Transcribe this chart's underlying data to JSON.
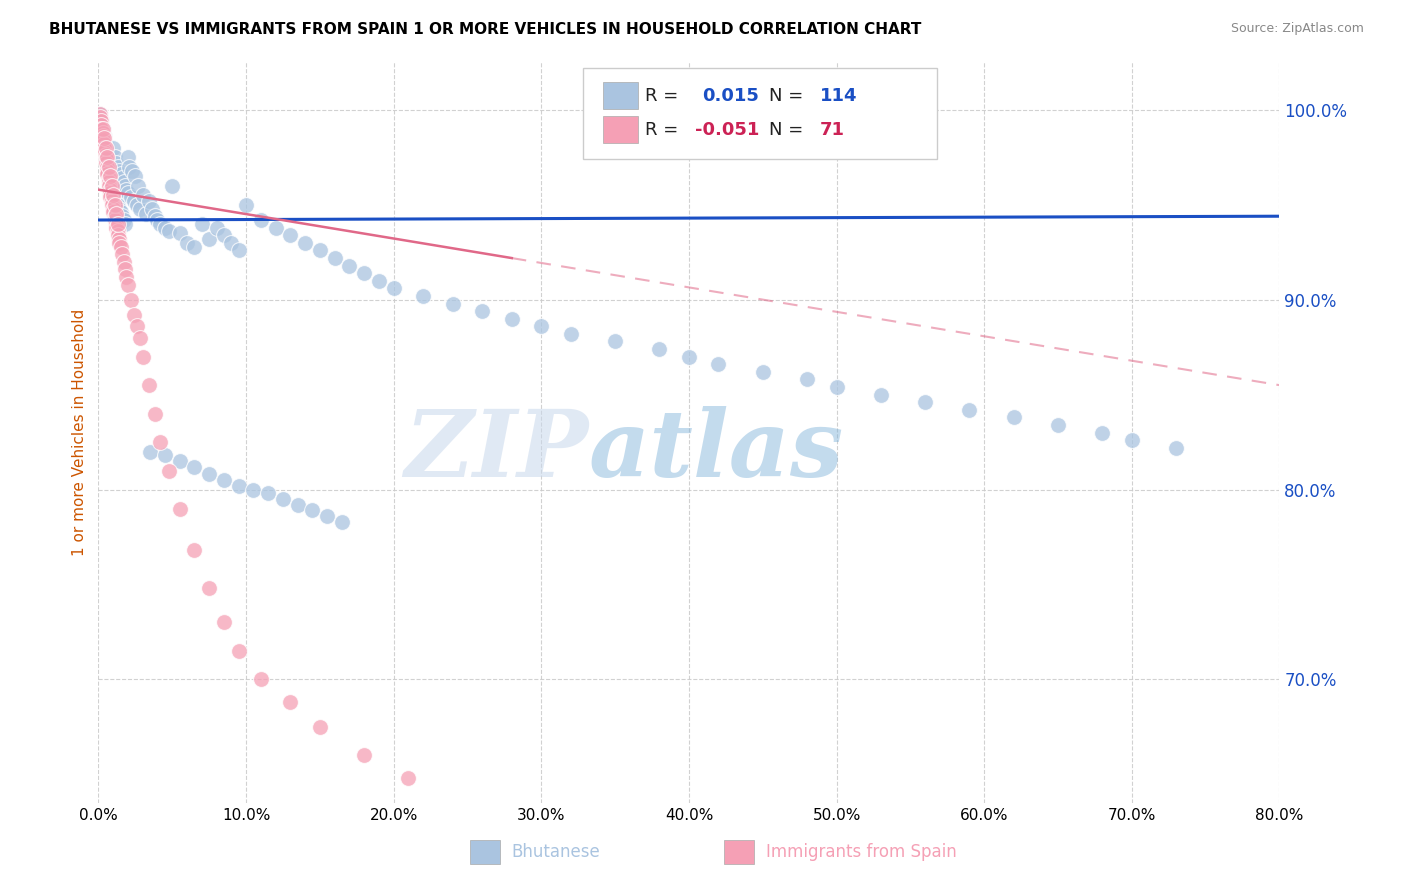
{
  "title": "BHUTANESE VS IMMIGRANTS FROM SPAIN 1 OR MORE VEHICLES IN HOUSEHOLD CORRELATION CHART",
  "source": "Source: ZipAtlas.com",
  "ylabel": "1 or more Vehicles in Household",
  "xlim": [
    0.0,
    0.8
  ],
  "ylim": [
    0.635,
    1.025
  ],
  "yticks": [
    0.7,
    0.8,
    0.9,
    1.0
  ],
  "xticks": [
    0.0,
    0.1,
    0.2,
    0.3,
    0.4,
    0.5,
    0.6,
    0.7,
    0.8
  ],
  "R_blue": 0.015,
  "N_blue": 114,
  "R_pink": -0.051,
  "N_pink": 71,
  "blue_color": "#aac4e0",
  "pink_color": "#f5a0b5",
  "blue_line_color": "#1a4fc4",
  "pink_line_color": "#e06888",
  "watermark_zip": "ZIP",
  "watermark_atlas": "atlas",
  "blue_scatter_x": [
    0.001,
    0.002,
    0.002,
    0.003,
    0.003,
    0.004,
    0.004,
    0.005,
    0.005,
    0.006,
    0.006,
    0.007,
    0.007,
    0.007,
    0.008,
    0.008,
    0.008,
    0.009,
    0.009,
    0.009,
    0.01,
    0.01,
    0.011,
    0.011,
    0.012,
    0.012,
    0.013,
    0.013,
    0.014,
    0.014,
    0.015,
    0.015,
    0.016,
    0.016,
    0.017,
    0.017,
    0.018,
    0.018,
    0.019,
    0.02,
    0.02,
    0.021,
    0.022,
    0.023,
    0.024,
    0.025,
    0.026,
    0.027,
    0.028,
    0.03,
    0.032,
    0.034,
    0.036,
    0.038,
    0.04,
    0.042,
    0.045,
    0.048,
    0.05,
    0.055,
    0.06,
    0.065,
    0.07,
    0.075,
    0.08,
    0.085,
    0.09,
    0.095,
    0.1,
    0.11,
    0.12,
    0.13,
    0.14,
    0.15,
    0.16,
    0.17,
    0.18,
    0.19,
    0.2,
    0.22,
    0.24,
    0.26,
    0.28,
    0.3,
    0.32,
    0.35,
    0.38,
    0.4,
    0.42,
    0.45,
    0.48,
    0.5,
    0.53,
    0.56,
    0.59,
    0.62,
    0.65,
    0.68,
    0.7,
    0.73,
    0.035,
    0.045,
    0.055,
    0.065,
    0.075,
    0.085,
    0.095,
    0.105,
    0.115,
    0.125,
    0.135,
    0.145,
    0.155,
    0.165
  ],
  "blue_scatter_y": [
    0.998,
    0.995,
    0.993,
    0.99,
    0.988,
    0.987,
    0.984,
    0.982,
    0.98,
    0.978,
    0.976,
    0.975,
    0.972,
    0.97,
    0.968,
    0.966,
    0.964,
    0.962,
    0.96,
    0.958,
    0.98,
    0.956,
    0.975,
    0.954,
    0.972,
    0.952,
    0.97,
    0.95,
    0.968,
    0.948,
    0.966,
    0.946,
    0.964,
    0.944,
    0.962,
    0.942,
    0.96,
    0.94,
    0.958,
    0.975,
    0.956,
    0.97,
    0.954,
    0.968,
    0.952,
    0.965,
    0.95,
    0.96,
    0.948,
    0.955,
    0.945,
    0.952,
    0.948,
    0.944,
    0.942,
    0.94,
    0.938,
    0.936,
    0.96,
    0.935,
    0.93,
    0.928,
    0.94,
    0.932,
    0.938,
    0.934,
    0.93,
    0.926,
    0.95,
    0.942,
    0.938,
    0.934,
    0.93,
    0.926,
    0.922,
    0.918,
    0.914,
    0.91,
    0.906,
    0.902,
    0.898,
    0.894,
    0.89,
    0.886,
    0.882,
    0.878,
    0.874,
    0.87,
    0.866,
    0.862,
    0.858,
    0.854,
    0.85,
    0.846,
    0.842,
    0.838,
    0.834,
    0.83,
    0.826,
    0.822,
    0.82,
    0.818,
    0.815,
    0.812,
    0.808,
    0.805,
    0.802,
    0.8,
    0.798,
    0.795,
    0.792,
    0.789,
    0.786,
    0.783
  ],
  "pink_scatter_x": [
    0.001,
    0.001,
    0.002,
    0.002,
    0.002,
    0.003,
    0.003,
    0.003,
    0.004,
    0.004,
    0.004,
    0.005,
    0.005,
    0.005,
    0.006,
    0.006,
    0.006,
    0.007,
    0.007,
    0.007,
    0.008,
    0.008,
    0.008,
    0.009,
    0.009,
    0.01,
    0.01,
    0.011,
    0.011,
    0.012,
    0.012,
    0.013,
    0.013,
    0.014,
    0.014,
    0.015,
    0.016,
    0.017,
    0.018,
    0.019,
    0.02,
    0.022,
    0.024,
    0.026,
    0.028,
    0.03,
    0.034,
    0.038,
    0.042,
    0.048,
    0.055,
    0.065,
    0.075,
    0.085,
    0.095,
    0.11,
    0.13,
    0.15,
    0.18,
    0.21,
    0.003,
    0.004,
    0.005,
    0.006,
    0.007,
    0.008,
    0.009,
    0.01,
    0.011,
    0.012,
    0.013
  ],
  "pink_scatter_y": [
    0.998,
    0.996,
    0.994,
    0.992,
    0.99,
    0.988,
    0.986,
    0.984,
    0.982,
    0.98,
    0.978,
    0.976,
    0.974,
    0.972,
    0.97,
    0.968,
    0.966,
    0.964,
    0.962,
    0.96,
    0.958,
    0.956,
    0.954,
    0.952,
    0.95,
    0.948,
    0.946,
    0.944,
    0.942,
    0.94,
    0.938,
    0.936,
    0.934,
    0.932,
    0.93,
    0.928,
    0.924,
    0.92,
    0.916,
    0.912,
    0.908,
    0.9,
    0.892,
    0.886,
    0.88,
    0.87,
    0.855,
    0.84,
    0.825,
    0.81,
    0.79,
    0.768,
    0.748,
    0.73,
    0.715,
    0.7,
    0.688,
    0.675,
    0.66,
    0.648,
    0.99,
    0.985,
    0.98,
    0.975,
    0.97,
    0.965,
    0.96,
    0.955,
    0.95,
    0.945,
    0.94
  ]
}
